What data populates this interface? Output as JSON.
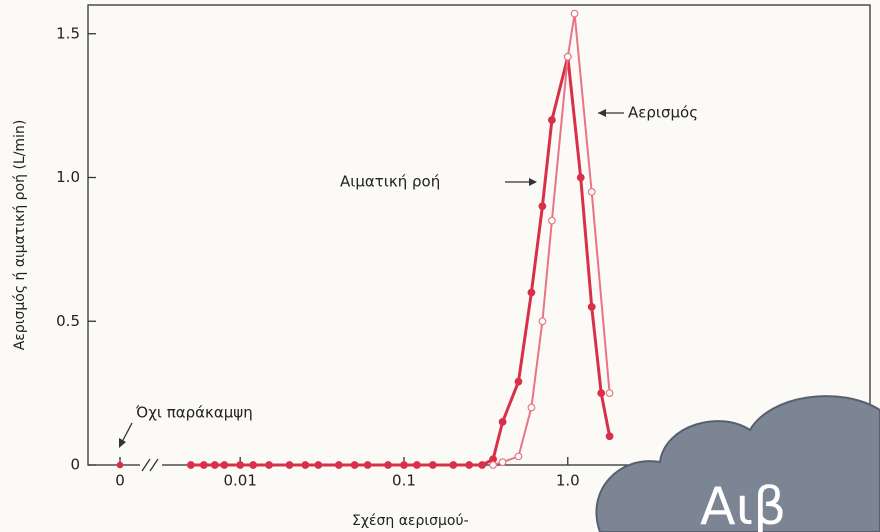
{
  "chart_data": {
    "type": "line",
    "ylabel": "Αερισμός ή αιματική ροή (L/min)",
    "xlabel": "Σχέση αερισμού-",
    "xscale": "log",
    "xlim": [
      0.004,
      70
    ],
    "xticks": [
      0,
      0.01,
      0.1,
      {
        "value": 1,
        "label": "1.0"
      }
    ],
    "ylim": [
      0,
      1.6
    ],
    "yticks": [
      0,
      0.5,
      {
        "value": 1,
        "label": "1.0"
      },
      1.5
    ],
    "zero_point": {
      "x": 0,
      "value": 0,
      "label": "Όχι παράκαμψη",
      "color": "#d9304a"
    },
    "series": [
      {
        "name": "Αιματική ροή",
        "color": "#d9304a",
        "marker": "filled",
        "x": [
          0.005,
          0.006,
          0.007,
          0.008,
          0.01,
          0.012,
          0.015,
          0.02,
          0.025,
          0.03,
          0.04,
          0.05,
          0.06,
          0.08,
          0.1,
          0.12,
          0.15,
          0.2,
          0.25,
          0.3,
          0.35,
          0.4,
          0.5,
          0.6,
          0.7,
          0.8,
          1.0,
          1.2,
          1.4,
          1.6,
          1.8
        ],
        "values": [
          0,
          0,
          0,
          0,
          0,
          0,
          0,
          0,
          0,
          0,
          0,
          0,
          0,
          0,
          0,
          0,
          0,
          0,
          0,
          0,
          0.02,
          0.15,
          0.29,
          0.6,
          0.9,
          1.2,
          1.42,
          1.0,
          0.55,
          0.25,
          0.1
        ]
      },
      {
        "name": "Αερισμός",
        "color": "#e87585",
        "marker": "open",
        "x": [
          0.35,
          0.4,
          0.5,
          0.6,
          0.7,
          0.8,
          1.0,
          1.1,
          1.4,
          1.8
        ],
        "values": [
          0,
          0.01,
          0.03,
          0.2,
          0.5,
          0.85,
          1.42,
          1.57,
          0.95,
          0.25
        ]
      }
    ],
    "overlay_text": "Αιβ"
  }
}
